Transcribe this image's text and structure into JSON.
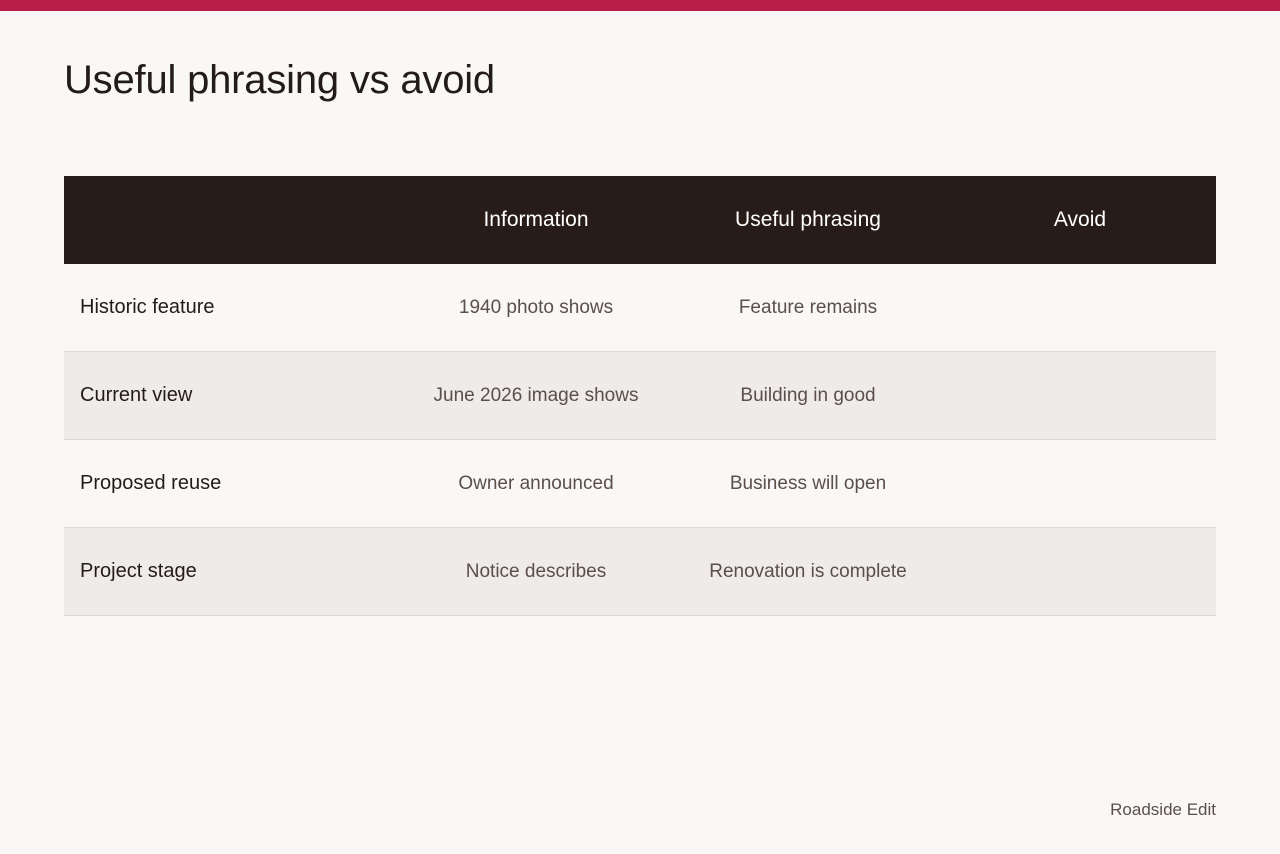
{
  "colors": {
    "accent": "#b81f48",
    "header_bg": "#271c18",
    "page_bg": "#f9f8f6",
    "alt_row_bg": "#efebe9"
  },
  "title": "Useful phrasing vs avoid",
  "table": {
    "headers": [
      "",
      "Information",
      "Useful phrasing",
      "Avoid"
    ],
    "rows": [
      {
        "label": "Historic feature",
        "information": "1940 photo shows",
        "useful": "Feature remains",
        "avoid": ""
      },
      {
        "label": "Current view",
        "information": "June 2026 image shows",
        "useful": "Building in good",
        "avoid": ""
      },
      {
        "label": "Proposed reuse",
        "information": "Owner announced",
        "useful": "Business will open",
        "avoid": ""
      },
      {
        "label": "Project stage",
        "information": "Notice describes",
        "useful": "Renovation is complete",
        "avoid": ""
      }
    ]
  },
  "footer": {
    "brand": "Roadside Edit"
  }
}
